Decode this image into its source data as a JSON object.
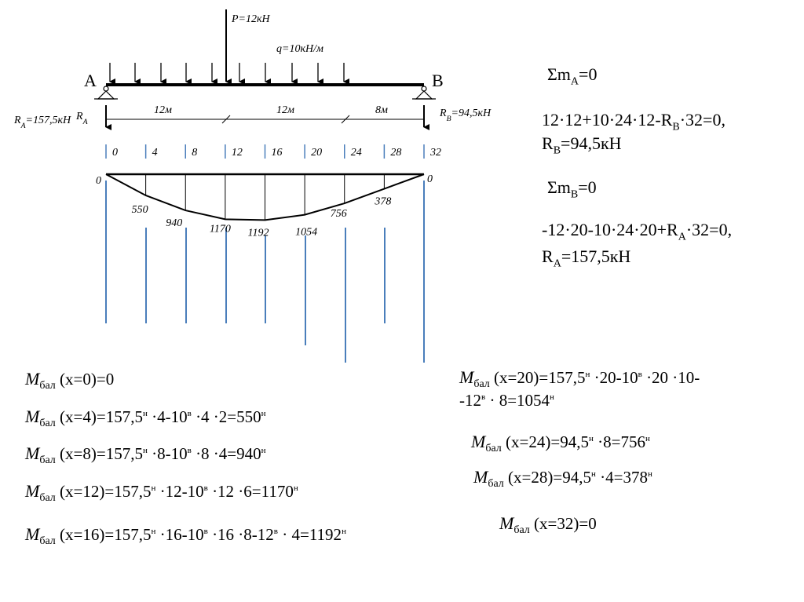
{
  "diagram": {
    "load_P": "P=12кН",
    "load_q": "q=10кН/м",
    "support_A": "A",
    "support_B": "B",
    "reaction_A": [
      {
        "n": "R"
      },
      {
        "sub": "A"
      },
      {
        "n": "=157,5кН"
      }
    ],
    "reaction_B": [
      {
        "n": "R"
      },
      {
        "sub": "B"
      },
      {
        "n": "=94,5кН"
      }
    ],
    "reaction_A_short": [
      {
        "n": "R"
      },
      {
        "sub": "A"
      }
    ],
    "spans": [
      "12м",
      "12м",
      "8м"
    ],
    "positions": [
      0,
      4,
      8,
      12,
      16,
      20,
      24,
      28,
      32
    ],
    "moments": [
      0,
      550,
      940,
      1170,
      1192,
      1054,
      756,
      378,
      0
    ]
  },
  "equations": [
    [
      {
        "n": "Σm"
      },
      {
        "sub": "A"
      },
      {
        "n": "=0"
      }
    ],
    [
      {
        "n": "12·12+10·24·12-R"
      },
      {
        "sub": "B"
      },
      {
        "n": "·32=0,"
      }
    ],
    [
      {
        "n": "R"
      },
      {
        "sub": "B"
      },
      {
        "n": "=94,5кН"
      }
    ],
    [
      {
        "n": "Σm"
      },
      {
        "sub": "B"
      },
      {
        "n": "=0"
      }
    ],
    [
      {
        "n": "-12·20-10·24·20+R"
      },
      {
        "sub": "A"
      },
      {
        "n": "·32=0,"
      }
    ],
    [
      {
        "n": "R"
      },
      {
        "sub": "A"
      },
      {
        "n": "=157,5кН"
      }
    ]
  ],
  "formulas": [
    [
      {
        "i": "M"
      },
      {
        "sub": "бал"
      },
      {
        "n": " (x=0)=0"
      }
    ],
    [
      {
        "i": "M"
      },
      {
        "sub": "бал"
      },
      {
        "n": " (x=4)=157,5"
      },
      {
        "sup": "н"
      },
      {
        "n": " ·4-10"
      },
      {
        "sup": "в"
      },
      {
        "n": " ·4 ·2=550"
      },
      {
        "sup": "н"
      }
    ],
    [
      {
        "i": "M"
      },
      {
        "sub": "бал"
      },
      {
        "n": " (x=8)=157,5"
      },
      {
        "sup": "н"
      },
      {
        "n": " ·8-10"
      },
      {
        "sup": "в"
      },
      {
        "n": " ·8 ·4=940"
      },
      {
        "sup": "н"
      }
    ],
    [
      {
        "i": "M"
      },
      {
        "sub": "бал"
      },
      {
        "n": " (x=12)=157,5"
      },
      {
        "sup": "н"
      },
      {
        "n": " ·12-10"
      },
      {
        "sup": "в"
      },
      {
        "n": " ·12 ·6=1170"
      },
      {
        "sup": "н"
      }
    ],
    [
      {
        "i": "M"
      },
      {
        "sub": "бал"
      },
      {
        "n": " (x=16)=157,5"
      },
      {
        "sup": "н"
      },
      {
        "n": " ·16-10"
      },
      {
        "sup": "в"
      },
      {
        "n": " ·16 ·8-12"
      },
      {
        "sup": "в"
      },
      {
        "n": " · 4=1192"
      },
      {
        "sup": "н"
      }
    ],
    [
      {
        "i": "M"
      },
      {
        "sub": "бал"
      },
      {
        "n": " (x=20)=157,5"
      },
      {
        "sup": "н"
      },
      {
        "n": " ·20-10"
      },
      {
        "sup": "в"
      },
      {
        "n": " ·20 ·10-"
      },
      {
        "br": "-12"
      },
      {
        "sup": "в"
      },
      {
        "n": " · 8=1054"
      },
      {
        "sup": "н"
      }
    ],
    [
      {
        "i": "M"
      },
      {
        "sub": "бал"
      },
      {
        "n": " (x=24)=94,5"
      },
      {
        "sup": "н"
      },
      {
        "n": " ·8=756"
      },
      {
        "sup": "н"
      }
    ],
    [
      {
        "i": "M"
      },
      {
        "sub": "бал"
      },
      {
        "n": " (x=28)=94,5"
      },
      {
        "sup": "н"
      },
      {
        "n": " ·4=378"
      },
      {
        "sup": "н"
      }
    ],
    [
      {
        "i": "M"
      },
      {
        "sub": "бал"
      },
      {
        "n": " (x=32)=0"
      }
    ]
  ]
}
